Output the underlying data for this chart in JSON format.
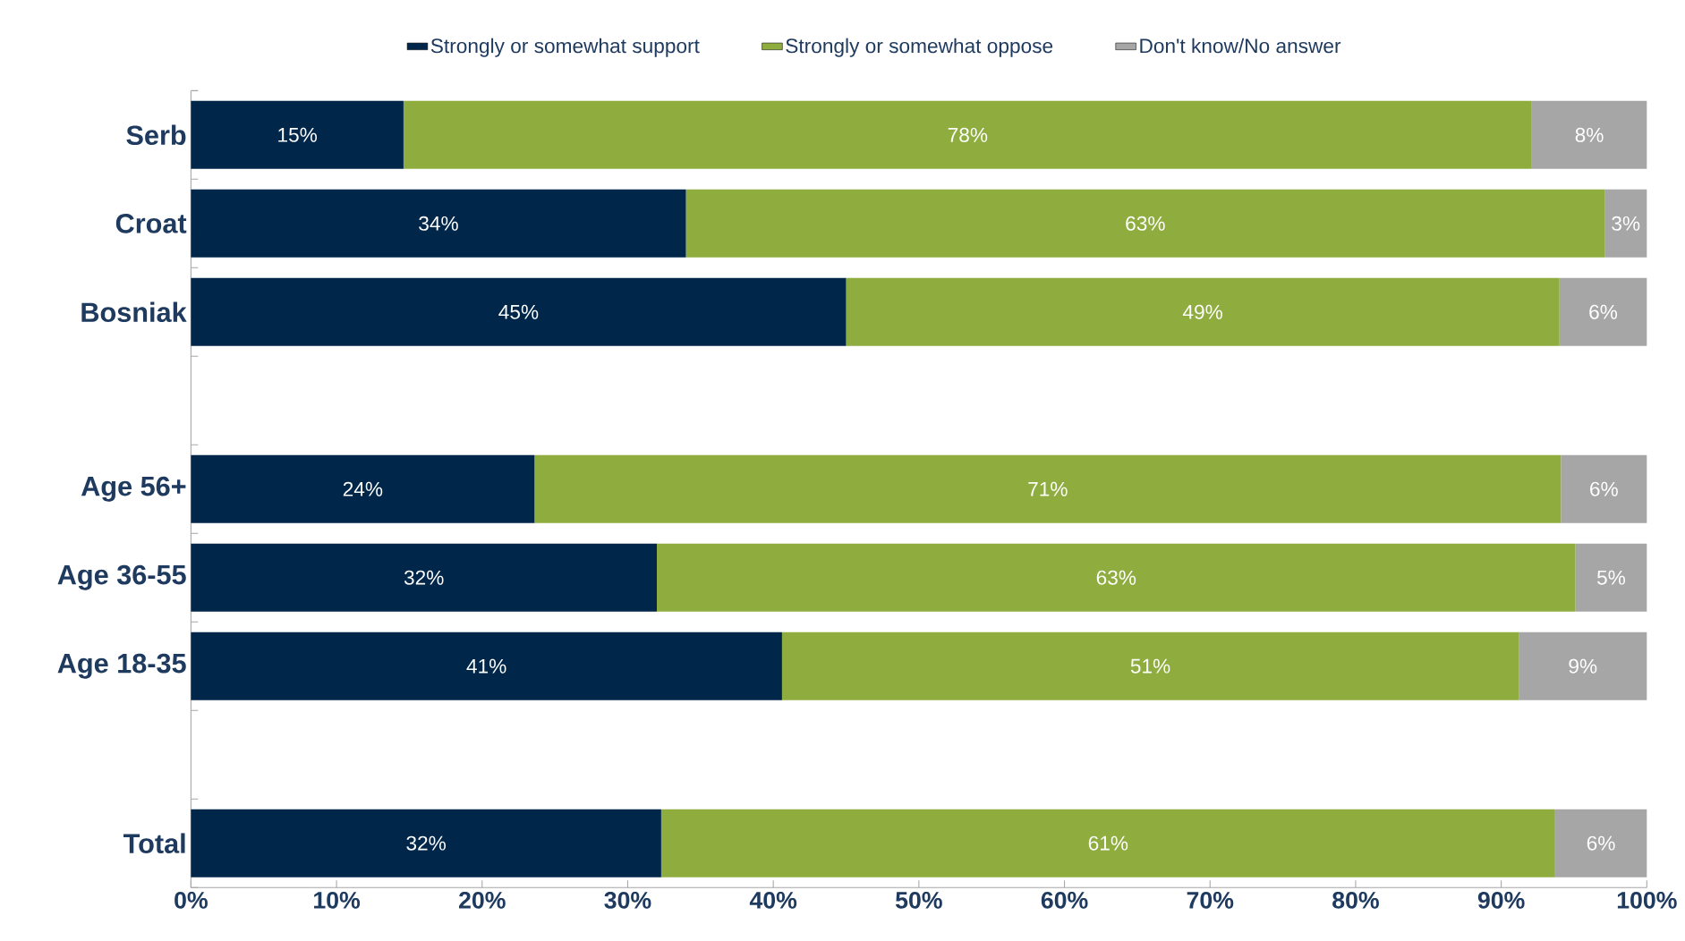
{
  "chart_data": {
    "type": "bar",
    "orientation": "horizontal",
    "stacked": true,
    "categories": [
      "Serb",
      "Croat",
      "Bosniak",
      null,
      "Age 56+",
      "Age 36-55",
      "Age 18-35",
      null,
      "Total"
    ],
    "series": [
      {
        "name": "Strongly or somewhat support",
        "color": "#00264a",
        "values": [
          14.6,
          34.0,
          45.0,
          null,
          23.6,
          32.0,
          40.6,
          null,
          32.3
        ],
        "value_labels": [
          "15%",
          "34%",
          "45%",
          null,
          "24%",
          "32%",
          "41%",
          null,
          "32%"
        ]
      },
      {
        "name": "Strongly or somewhat oppose",
        "color": "#8fad3f",
        "values": [
          77.5,
          63.1,
          49.0,
          null,
          70.5,
          63.1,
          50.6,
          null,
          61.4
        ],
        "value_labels": [
          "78%",
          "63%",
          "49%",
          null,
          "71%",
          "63%",
          "51%",
          null,
          "61%"
        ]
      },
      {
        "name": "Don't know/No answer",
        "color": "#a6a6a6",
        "values": [
          7.9,
          2.9,
          6.0,
          null,
          5.9,
          4.9,
          8.8,
          null,
          6.3
        ],
        "value_labels": [
          "8%",
          "3%",
          "6%",
          null,
          "6%",
          "5%",
          "9%",
          null,
          "6%"
        ]
      }
    ],
    "xlim": [
      0,
      100
    ],
    "xticks": [
      {
        "value": 0,
        "label": "0%"
      },
      {
        "value": 10,
        "label": "10%"
      },
      {
        "value": 20,
        "label": "20%"
      },
      {
        "value": 30,
        "label": "30%"
      },
      {
        "value": 40,
        "label": "40%"
      },
      {
        "value": 50,
        "label": "50%"
      },
      {
        "value": 60,
        "label": "60%"
      },
      {
        "value": 70,
        "label": "70%"
      },
      {
        "value": 80,
        "label": "80%"
      },
      {
        "value": 90,
        "label": "90%"
      },
      {
        "value": 100,
        "label": "100%"
      }
    ],
    "legend": "top"
  }
}
